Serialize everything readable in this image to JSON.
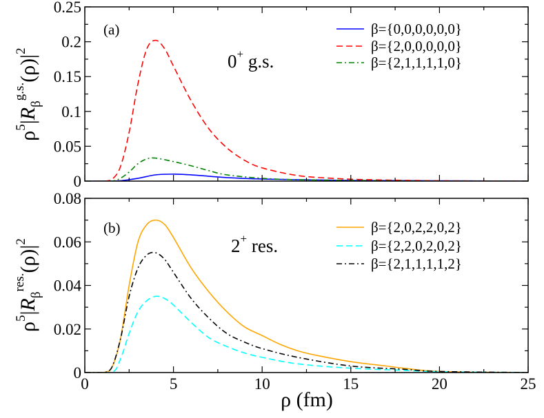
{
  "chart_data": [
    {
      "type": "line",
      "panel_label": "(a)",
      "annotation": {
        "main": "0",
        "sup": "+",
        "rest": " g.s."
      },
      "ylabel": {
        "base": "ρ",
        "sup1": "5",
        "bar": "|",
        "R": "R",
        "sub": "β",
        "sup2": "g.s.",
        "tail": "(ρ)|",
        "sup3": "2"
      },
      "xlabel": "",
      "xlim": [
        0,
        25
      ],
      "ylim": [
        0,
        0.25
      ],
      "xticks": [
        0,
        5,
        10,
        15,
        20,
        25
      ],
      "xtick_labels_shown": false,
      "yticks": [
        0,
        0.05,
        0.1,
        0.15,
        0.2,
        0.25
      ],
      "ytick_labels": [
        "0",
        "0.05",
        "0.1",
        "0.15",
        "0.2",
        "0.25"
      ],
      "legend_position": "top-right",
      "grid": false,
      "series": [
        {
          "name": "β={0,0,0,0,0,0}",
          "color": "#0000ff",
          "dash": "solid",
          "x": [
            0,
            1,
            2,
            3,
            4,
            5,
            6,
            7,
            8,
            10,
            12,
            15,
            20,
            25
          ],
          "y": [
            0,
            0,
            0.0005,
            0.004,
            0.009,
            0.01,
            0.009,
            0.007,
            0.005,
            0.003,
            0.002,
            0.001,
            0.0005,
            0
          ]
        },
        {
          "name": "β={2,0,0,0,0,0}",
          "color": "#ff0000",
          "dash": "dashed",
          "x": [
            0,
            1,
            1.5,
            2,
            2.5,
            3,
            3.5,
            4,
            4.5,
            5,
            6,
            7,
            8,
            9,
            10,
            12,
            14,
            16,
            20,
            25
          ],
          "y": [
            0,
            0,
            0.002,
            0.02,
            0.07,
            0.14,
            0.19,
            0.202,
            0.19,
            0.165,
            0.115,
            0.075,
            0.048,
            0.03,
            0.019,
            0.008,
            0.004,
            0.002,
            0.0005,
            0
          ]
        },
        {
          "name": "β={2,1,1,1,1,0}",
          "color": "#008000",
          "dash": "dash-dot",
          "x": [
            0,
            1.5,
            2,
            2.5,
            3,
            3.5,
            4,
            5,
            6,
            7,
            8,
            10,
            12,
            15,
            20,
            25
          ],
          "y": [
            0,
            0,
            0.004,
            0.013,
            0.025,
            0.032,
            0.033,
            0.028,
            0.022,
            0.015,
            0.009,
            0.004,
            0.002,
            0.001,
            0,
            0
          ]
        }
      ]
    },
    {
      "type": "line",
      "panel_label": "(b)",
      "annotation": {
        "main": "2",
        "sup": "+",
        "rest": " res."
      },
      "ylabel": {
        "base": "ρ",
        "sup1": "5",
        "bar": "|",
        "R": "R",
        "sub": "β",
        "sup2": "res.",
        "tail": "(ρ)|",
        "sup3": "2"
      },
      "xlabel": "ρ (fm)",
      "xlim": [
        0,
        25
      ],
      "ylim": [
        0,
        0.08
      ],
      "xticks": [
        0,
        5,
        10,
        15,
        20,
        25
      ],
      "xtick_labels": [
        "0",
        "5",
        "10",
        "15",
        "20",
        "25"
      ],
      "yticks": [
        0,
        0.02,
        0.04,
        0.06,
        0.08
      ],
      "ytick_labels": [
        "0",
        "0.02",
        "0.04",
        "0.06",
        "0.08"
      ],
      "legend_position": "top-right",
      "grid": false,
      "series": [
        {
          "name": "β={2,0,2,2,0,2}",
          "color": "#ffa500",
          "dash": "solid",
          "x": [
            0,
            1,
            1.5,
            2,
            2.5,
            3,
            3.5,
            4,
            4.5,
            5,
            6,
            7,
            8,
            9,
            10,
            11,
            12,
            13,
            15,
            17,
            18,
            20,
            25
          ],
          "y": [
            0,
            0,
            0.002,
            0.015,
            0.04,
            0.06,
            0.068,
            0.07,
            0.068,
            0.062,
            0.048,
            0.037,
            0.028,
            0.021,
            0.017,
            0.013,
            0.01,
            0.008,
            0.005,
            0.003,
            0.002,
            0.0005,
            0
          ]
        },
        {
          "name": "β={2,2,0,2,0,2}",
          "color": "#00ffff",
          "dash": "dashed",
          "x": [
            0,
            1.5,
            2,
            2.5,
            3,
            3.5,
            4,
            4.5,
            5,
            6,
            7,
            8,
            9,
            10,
            12,
            15,
            18,
            20,
            25
          ],
          "y": [
            0,
            0,
            0.006,
            0.018,
            0.028,
            0.033,
            0.035,
            0.034,
            0.031,
            0.023,
            0.016,
            0.012,
            0.009,
            0.007,
            0.004,
            0.002,
            0.001,
            0.0004,
            0
          ]
        },
        {
          "name": "β={2,1,1,1,1,2}",
          "color": "#000000",
          "dash": "dash-dot",
          "x": [
            0,
            1,
            1.5,
            2,
            2.5,
            3,
            3.5,
            4,
            4.5,
            5,
            6,
            7,
            8,
            9,
            10,
            12,
            15,
            18,
            20,
            25
          ],
          "y": [
            0,
            0,
            0.002,
            0.015,
            0.035,
            0.048,
            0.054,
            0.055,
            0.052,
            0.046,
            0.034,
            0.025,
            0.018,
            0.014,
            0.011,
            0.007,
            0.003,
            0.0015,
            0.0005,
            0
          ]
        }
      ]
    }
  ]
}
